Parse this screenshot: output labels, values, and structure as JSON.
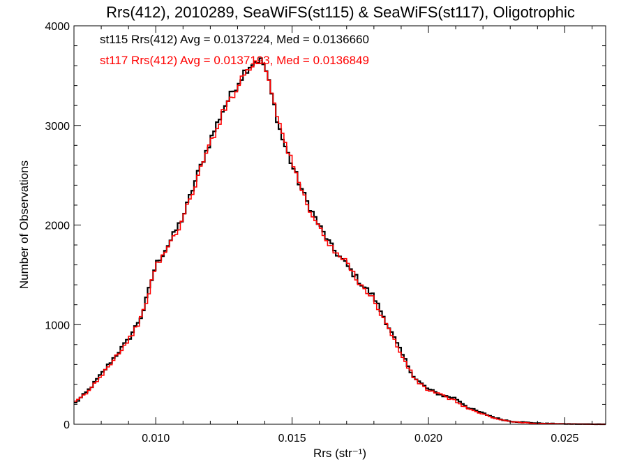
{
  "chart_data": {
    "type": "line",
    "title": "Rrs(412), 2010289, SeaWiFS(st115) & SeaWiFS(st117), Oligotrophic",
    "xlabel": "Rrs (str⁻¹)",
    "ylabel": "Number of Observations",
    "xlim": [
      0.007,
      0.0265
    ],
    "ylim": [
      0,
      4000
    ],
    "xticks": [
      "0.010",
      "0.015",
      "0.020",
      "0.025"
    ],
    "xtick_values": [
      0.01,
      0.015,
      0.02,
      0.025
    ],
    "yticks": [
      "0",
      "1000",
      "2000",
      "3000",
      "4000"
    ],
    "ytick_values": [
      0,
      1000,
      2000,
      3000,
      4000
    ],
    "grid": false,
    "legend_position": "top-left",
    "legend": [
      "st115 Rrs(412) Avg = 0.0137224, Med = 0.0136660",
      "st117 Rrs(412) Avg = 0.0137193, Med = 0.0136849"
    ],
    "series": [
      {
        "color": "#000000",
        "step": true,
        "x": [
          0.007,
          0.0075,
          0.008,
          0.0085,
          0.009,
          0.0095,
          0.01,
          0.0105,
          0.011,
          0.0115,
          0.012,
          0.0125,
          0.013,
          0.0133,
          0.0136,
          0.0138,
          0.014,
          0.0143,
          0.0146,
          0.015,
          0.0155,
          0.016,
          0.0165,
          0.017,
          0.0175,
          0.018,
          0.0185,
          0.019,
          0.0195,
          0.02,
          0.0205,
          0.021,
          0.0215,
          0.022,
          0.0225,
          0.023,
          0.024,
          0.025,
          0.0265
        ],
        "y": [
          200,
          330,
          500,
          680,
          850,
          1100,
          1600,
          1820,
          2080,
          2480,
          2850,
          3180,
          3420,
          3560,
          3640,
          3660,
          3600,
          3250,
          2900,
          2600,
          2260,
          1990,
          1760,
          1600,
          1420,
          1280,
          1000,
          720,
          460,
          350,
          290,
          260,
          160,
          110,
          60,
          30,
          10,
          3,
          0
        ]
      },
      {
        "color": "#ff0000",
        "step": true,
        "x": [
          0.007,
          0.0075,
          0.008,
          0.0085,
          0.009,
          0.0095,
          0.01,
          0.0105,
          0.011,
          0.0115,
          0.012,
          0.0125,
          0.013,
          0.0133,
          0.0136,
          0.0138,
          0.014,
          0.0143,
          0.0146,
          0.015,
          0.0155,
          0.016,
          0.0165,
          0.017,
          0.0175,
          0.018,
          0.0185,
          0.019,
          0.0195,
          0.02,
          0.0205,
          0.021,
          0.0215,
          0.022,
          0.0225,
          0.023,
          0.024,
          0.025,
          0.0265
        ],
        "y": [
          210,
          320,
          490,
          670,
          840,
          1080,
          1580,
          1800,
          2060,
          2450,
          2820,
          3150,
          3400,
          3540,
          3620,
          3640,
          3620,
          3300,
          2950,
          2620,
          2240,
          1970,
          1740,
          1620,
          1410,
          1250,
          980,
          700,
          450,
          340,
          290,
          230,
          150,
          100,
          55,
          25,
          8,
          2,
          0
        ]
      }
    ]
  }
}
